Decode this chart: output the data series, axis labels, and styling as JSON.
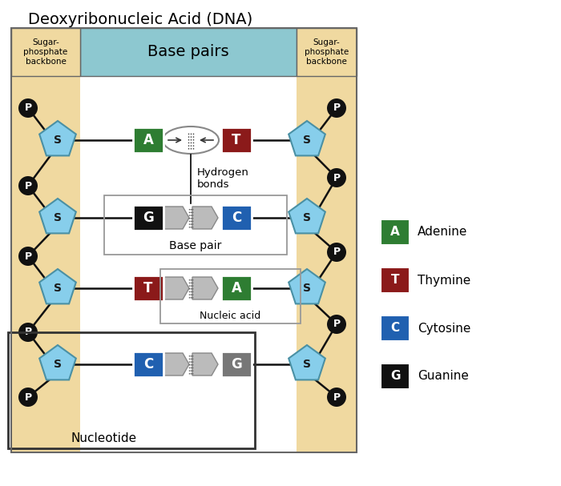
{
  "title": "Deoxyribonucleic Acid (DNA)",
  "bg_color": "#FFFFFF",
  "sugar_phosphate_bg": "#F0D9A0",
  "base_pairs_bg": "#8DC8D0",
  "adenine_color": "#2E7D32",
  "thymine_color": "#8B1A1A",
  "cytosine_color": "#2060B0",
  "guanine_color": "#111111",
  "guanine_gray_color": "#777777",
  "sugar_color": "#87CEEB",
  "sugar_border": "#4A90A4",
  "phosphate_color": "#111111",
  "connector_color": "#111111",
  "legend_labels": [
    "Adenine",
    "Thymine",
    "Cytosine",
    "Guanine"
  ],
  "legend_colors": [
    "#2E7D32",
    "#8B1A1A",
    "#2060B0",
    "#111111"
  ],
  "legend_letters": [
    "A",
    "T",
    "C",
    "G"
  ],
  "base_pairs_label": "Base pairs",
  "sugar_phosphate_label": "Sugar-\nphosphate\nbackbone",
  "hydrogen_bonds_label": "Hydrogen\nbonds",
  "base_pair_label": "Base pair",
  "nucleic_acid_label": "Nucleic acid",
  "nucleotide_label": "Nucleotide",
  "base_pairs": [
    [
      "A",
      "#2E7D32",
      "T",
      "#8B1A1A"
    ],
    [
      "G",
      "#111111",
      "C",
      "#2060B0"
    ],
    [
      "T",
      "#8B1A1A",
      "A",
      "#2E7D32"
    ],
    [
      "C",
      "#2060B0",
      "G",
      "#777777"
    ]
  ]
}
